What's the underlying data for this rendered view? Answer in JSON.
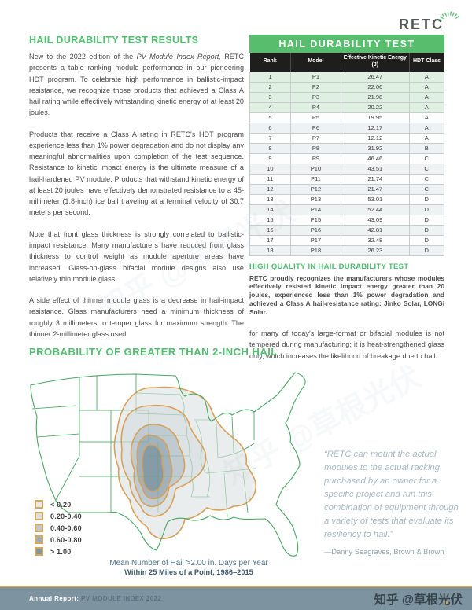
{
  "logo": {
    "text": "RETC"
  },
  "left_column": {
    "heading": "HAIL DURABILITY TEST RESULTS",
    "paragraphs": [
      {
        "segments": [
          {
            "text": "New to the 2022 edition of the ",
            "italic": false
          },
          {
            "text": "PV Module Index Report,",
            "italic": true
          },
          {
            "text": " RETC presents a table ranking module performance in our pioneering HDT program. To celebrate high performance in ballistic-impact resistance, we recognize those products that achieved a Class A hail rating while effectively withstanding kinetic energy of at least 20 joules.",
            "italic": false
          }
        ]
      },
      {
        "segments": [
          {
            "text": "Products that receive a Class A rating in RETC's HDT program experience less than 1% power degradation and do not display any meaningful abnormalities upon completion of the test sequence. Resistance to kinetic impact energy is the ultimate measure of a hail-hardened PV module. Products that withstand kinetic energy of at least 20 joules have effectively demonstrated resistance to a 45-millimeter (1.8-inch) ice ball traveling at a terminal velocity of 30.7 meters per second.",
            "italic": false
          }
        ]
      },
      {
        "segments": [
          {
            "text": "Note that front glass thickness is strongly correlated to ballistic-impact resistance. Many manufacturers have reduced front glass thickness to control weight as module aperture areas have increased. Glass-on-glass bifacial module designs also use relatively thin module glass.",
            "italic": false
          }
        ]
      },
      {
        "segments": [
          {
            "text": "A side effect of thinner module glass is a decrease in hail-impact resistance. Glass manufacturers need a minimum thickness of roughly 3 millimeters to temper glass for maximum strength. The thinner 2-millimeter glass used",
            "italic": false
          }
        ]
      }
    ]
  },
  "table": {
    "banner": "HAIL DURABILITY TEST",
    "columns": [
      "Rank",
      "Model",
      "Effective Kinetic Energy (J)",
      "HDT Class"
    ],
    "highlight_count": 4,
    "rows": [
      [
        "1",
        "P1",
        "26.47",
        "A"
      ],
      [
        "2",
        "P2",
        "22.06",
        "A"
      ],
      [
        "3",
        "P3",
        "21.98",
        "A"
      ],
      [
        "4",
        "P4",
        "20.22",
        "A"
      ],
      [
        "5",
        "P5",
        "19.95",
        "A"
      ],
      [
        "6",
        "P6",
        "12.17",
        "A"
      ],
      [
        "7",
        "P7",
        "12.12",
        "A"
      ],
      [
        "8",
        "P8",
        "31.92",
        "B"
      ],
      [
        "9",
        "P9",
        "46.46",
        "C"
      ],
      [
        "10",
        "P10",
        "43.51",
        "C"
      ],
      [
        "11",
        "P11",
        "21.74",
        "C"
      ],
      [
        "12",
        "P12",
        "21.47",
        "C"
      ],
      [
        "13",
        "P13",
        "53.01",
        "D"
      ],
      [
        "14",
        "P14",
        "52.44",
        "D"
      ],
      [
        "15",
        "P15",
        "43.09",
        "D"
      ],
      [
        "16",
        "P16",
        "42.81",
        "D"
      ],
      [
        "17",
        "P17",
        "32.48",
        "D"
      ],
      [
        "18",
        "P18",
        "26.23",
        "D"
      ]
    ]
  },
  "high_quality": {
    "heading": "HIGH QUALITY IN HAIL DURABILITY TEST",
    "body": "RETC proudly recognizes the manufacturers whose modules effectively resisted kinetic impact energy greater than 20 joules, experienced less than 1% power degradation and achieved a Class A hail-resistance rating: Jinko Solar, LONGi Solar."
  },
  "right_paragraph": "for many of today's large-format or bifacial modules is not tempered during manufacturing; it is heat-strengthened glass only, which increases the likelihood of breakage due to hail.",
  "map_section": {
    "heading": "PROBABILITY OF GREATER THAN 2-INCH HAIL",
    "legend": [
      {
        "label": "< 0.20",
        "color": "#E8EBEB"
      },
      {
        "label": "0.20-0.40",
        "color": "#DBE0E2"
      },
      {
        "label": "0.40-0.60",
        "color": "#BDC8CE"
      },
      {
        "label": "0.60-0.80",
        "color": "#9EAFBA"
      },
      {
        "label": "> 1.00",
        "color": "#8398A5"
      }
    ],
    "contour_stroke": "#D9A058",
    "state_line_color": "#48A763",
    "caption_line1": "Mean Number of Hail >2.00 in. Days per Year",
    "caption_line2": "Within 25 Miles of a Point, 1986–2015"
  },
  "quote": {
    "text": "“RETC can mount the actual modules to the actual racking purchased by an owner for a specific project and run this combination of equipment through a variety of tests that evaluate its resiliency to hail.”",
    "attribution": "—Danny Seagraves, Brown & Brown"
  },
  "footer": {
    "label": "Annual Report:",
    "title": " PV MODULE INDEX 2022",
    "page": "16"
  },
  "watermark": {
    "text": "知乎 @草根光伏"
  },
  "accent_colors": {
    "green": "#4FBE6D",
    "tan": "#D9A058",
    "slate": "#7E93A0"
  }
}
